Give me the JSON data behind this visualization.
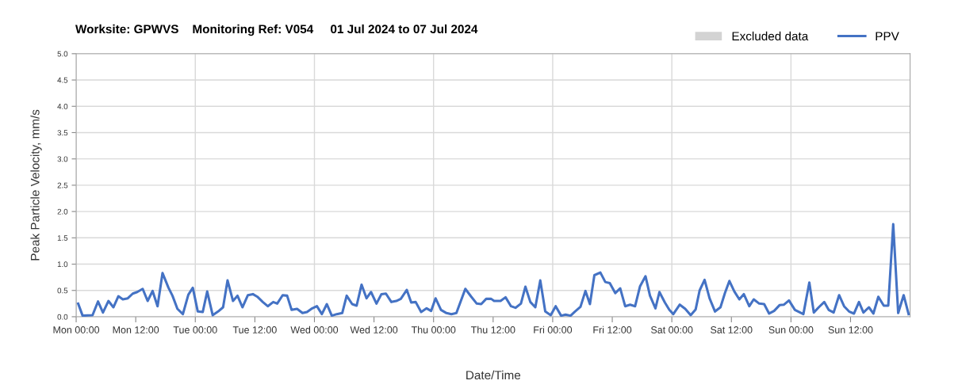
{
  "chart_data": {
    "type": "line",
    "title": "Worksite: GPWVS    Monitoring Ref: V054     01 Jul 2024 to 07 Jul 2024",
    "xlabel": "Date/Time",
    "ylabel": "Peak Particle Velocity, mm/s",
    "xlim": [
      "2024-07-01T00:00",
      "2024-07-08T00:00"
    ],
    "xticks": [
      {
        "value": "2024-07-01T00:00",
        "label": "Mon 00:00"
      },
      {
        "value": "2024-07-01T12:00",
        "label": "Mon 12:00"
      },
      {
        "value": "2024-07-02T00:00",
        "label": "Tue 00:00"
      },
      {
        "value": "2024-07-02T12:00",
        "label": "Tue 12:00"
      },
      {
        "value": "2024-07-03T00:00",
        "label": "Wed 00:00"
      },
      {
        "value": "2024-07-03T12:00",
        "label": "Wed 12:00"
      },
      {
        "value": "2024-07-04T00:00",
        "label": "Thu 00:00"
      },
      {
        "value": "2024-07-04T12:00",
        "label": "Thu 12:00"
      },
      {
        "value": "2024-07-05T00:00",
        "label": "Fri 00:00"
      },
      {
        "value": "2024-07-05T12:00",
        "label": "Fri 12:00"
      },
      {
        "value": "2024-07-06T00:00",
        "label": "Sat 00:00"
      },
      {
        "value": "2024-07-06T12:00",
        "label": "Sat 12:00"
      },
      {
        "value": "2024-07-07T00:00",
        "label": "Sun 00:00"
      },
      {
        "value": "2024-07-07T12:00",
        "label": "Sun 12:00"
      }
    ],
    "ylim": [
      0,
      5
    ],
    "yticks": [
      {
        "value": 0,
        "label": "0.0"
      },
      {
        "value": 0.5,
        "label": "0.5"
      },
      {
        "value": 1,
        "label": "1.0"
      },
      {
        "value": 1.5,
        "label": "1.5"
      },
      {
        "value": 2,
        "label": "2.0"
      },
      {
        "value": 2.5,
        "label": "2.5"
      },
      {
        "value": 3,
        "label": "3.0"
      },
      {
        "value": 3.5,
        "label": "3.5"
      },
      {
        "value": 4,
        "label": "4.0"
      },
      {
        "value": 4.5,
        "label": "4.5"
      },
      {
        "value": 5,
        "label": "5.0"
      }
    ],
    "grid": true,
    "legend": "top right",
    "series": [
      {
        "name": "Excluded data",
        "type": "area",
        "color": "#d3d3d3"
      },
      {
        "name": "PPV",
        "color": "#4472c4",
        "x": [
          "2024-07-01T00:24",
          "2024-07-01T01:18",
          "2024-07-01T03:18",
          "2024-07-01T04:24",
          "2024-07-01T05:24",
          "2024-07-01T06:30",
          "2024-07-01T07:30",
          "2024-07-01T08:30",
          "2024-07-01T09:24",
          "2024-07-01T10:24",
          "2024-07-01T11:24",
          "2024-07-01T12:18",
          "2024-07-01T13:24",
          "2024-07-01T14:24",
          "2024-07-01T15:24",
          "2024-07-01T16:24",
          "2024-07-01T17:24",
          "2024-07-01T18:36",
          "2024-07-01T19:24",
          "2024-07-01T20:24",
          "2024-07-01T21:30",
          "2024-07-01T22:36",
          "2024-07-01T23:30",
          "2024-07-02T00:30",
          "2024-07-02T01:30",
          "2024-07-02T02:24",
          "2024-07-02T03:30",
          "2024-07-02T04:36",
          "2024-07-02T05:36",
          "2024-07-02T06:30",
          "2024-07-02T07:36",
          "2024-07-02T08:30",
          "2024-07-02T09:30",
          "2024-07-02T10:36",
          "2024-07-02T11:36",
          "2024-07-02T12:30",
          "2024-07-02T13:36",
          "2024-07-02T14:36",
          "2024-07-02T15:42",
          "2024-07-02T16:30",
          "2024-07-02T17:36",
          "2024-07-02T18:30",
          "2024-07-02T19:24",
          "2024-07-02T20:30",
          "2024-07-02T21:36",
          "2024-07-02T22:30",
          "2024-07-02T23:24",
          "2024-07-03T00:30",
          "2024-07-03T01:30",
          "2024-07-03T02:30",
          "2024-07-03T03:30",
          "2024-07-03T04:30",
          "2024-07-03T05:36",
          "2024-07-03T06:30",
          "2024-07-03T07:36",
          "2024-07-03T08:30",
          "2024-07-03T09:30",
          "2024-07-03T10:30",
          "2024-07-03T11:24",
          "2024-07-03T12:30",
          "2024-07-03T13:30",
          "2024-07-03T14:24",
          "2024-07-03T15:30",
          "2024-07-03T16:30",
          "2024-07-03T17:24",
          "2024-07-03T18:36",
          "2024-07-03T19:30",
          "2024-07-03T20:24",
          "2024-07-03T21:30",
          "2024-07-03T22:36",
          "2024-07-03T23:30",
          "2024-07-04T00:24",
          "2024-07-04T01:30",
          "2024-07-04T02:36",
          "2024-07-04T03:36",
          "2024-07-04T04:36",
          "2024-07-04T06:24",
          "2024-07-04T07:36",
          "2024-07-04T08:42",
          "2024-07-04T09:36",
          "2024-07-04T10:36",
          "2024-07-04T11:36",
          "2024-07-04T12:12",
          "2024-07-04T13:30",
          "2024-07-04T14:30",
          "2024-07-04T15:36",
          "2024-07-04T16:30",
          "2024-07-04T17:36",
          "2024-07-04T18:30",
          "2024-07-04T19:30",
          "2024-07-04T20:30",
          "2024-07-04T21:30",
          "2024-07-04T22:30",
          "2024-07-04T23:36",
          "2024-07-05T00:36",
          "2024-07-05T01:42",
          "2024-07-05T02:36",
          "2024-07-05T03:36",
          "2024-07-05T04:30",
          "2024-07-05T05:36",
          "2024-07-05T06:36",
          "2024-07-05T07:30",
          "2024-07-05T08:24",
          "2024-07-05T09:36",
          "2024-07-05T10:36",
          "2024-07-05T11:30",
          "2024-07-05T12:36",
          "2024-07-05T13:36",
          "2024-07-05T14:36",
          "2024-07-05T15:36",
          "2024-07-05T16:36",
          "2024-07-05T17:36",
          "2024-07-05T18:42",
          "2024-07-05T19:36",
          "2024-07-05T20:42",
          "2024-07-05T21:30",
          "2024-07-05T22:36",
          "2024-07-05T23:30",
          "2024-07-06T00:18",
          "2024-07-06T01:36",
          "2024-07-06T02:42",
          "2024-07-06T03:48",
          "2024-07-06T04:48",
          "2024-07-06T05:36",
          "2024-07-06T06:36",
          "2024-07-06T07:36",
          "2024-07-06T08:42",
          "2024-07-06T09:48",
          "2024-07-06T10:42",
          "2024-07-06T11:36",
          "2024-07-06T12:36",
          "2024-07-06T13:36",
          "2024-07-06T14:30",
          "2024-07-06T15:36",
          "2024-07-06T16:30",
          "2024-07-06T17:36",
          "2024-07-06T18:36",
          "2024-07-06T19:36",
          "2024-07-06T20:36",
          "2024-07-06T21:42",
          "2024-07-06T22:36",
          "2024-07-06T23:36",
          "2024-07-07T00:48",
          "2024-07-07T02:30",
          "2024-07-07T03:42",
          "2024-07-07T04:36",
          "2024-07-07T05:36",
          "2024-07-07T06:42",
          "2024-07-07T07:36",
          "2024-07-07T08:36",
          "2024-07-07T09:42",
          "2024-07-07T10:42",
          "2024-07-07T11:42",
          "2024-07-07T12:42",
          "2024-07-07T13:42",
          "2024-07-07T14:36",
          "2024-07-07T15:42",
          "2024-07-07T16:36",
          "2024-07-07T17:36",
          "2024-07-07T18:42",
          "2024-07-07T19:36",
          "2024-07-07T20:36",
          "2024-07-07T21:36",
          "2024-07-07T22:42",
          "2024-07-07T23:42"
        ],
        "values": [
          0.25,
          0.02,
          0.03,
          0.29,
          0.08,
          0.3,
          0.18,
          0.39,
          0.33,
          0.35,
          0.44,
          0.47,
          0.53,
          0.3,
          0.49,
          0.2,
          0.83,
          0.55,
          0.4,
          0.15,
          0.05,
          0.42,
          0.55,
          0.1,
          0.09,
          0.48,
          0.03,
          0.1,
          0.18,
          0.69,
          0.3,
          0.4,
          0.18,
          0.41,
          0.43,
          0.38,
          0.28,
          0.2,
          0.28,
          0.25,
          0.41,
          0.4,
          0.13,
          0.15,
          0.07,
          0.09,
          0.15,
          0.2,
          0.05,
          0.24,
          0.02,
          0.05,
          0.07,
          0.4,
          0.24,
          0.21,
          0.61,
          0.35,
          0.47,
          0.25,
          0.43,
          0.44,
          0.28,
          0.3,
          0.34,
          0.51,
          0.27,
          0.28,
          0.09,
          0.16,
          0.11,
          0.35,
          0.13,
          0.07,
          0.05,
          0.07,
          0.53,
          0.38,
          0.25,
          0.24,
          0.34,
          0.34,
          0.3,
          0.3,
          0.37,
          0.2,
          0.17,
          0.25,
          0.57,
          0.28,
          0.18,
          0.69,
          0.1,
          0.03,
          0.2,
          0.02,
          0.04,
          0.02,
          0.1,
          0.19,
          0.49,
          0.24,
          0.79,
          0.84,
          0.66,
          0.64,
          0.45,
          0.54,
          0.2,
          0.23,
          0.2,
          0.58,
          0.77,
          0.4,
          0.16,
          0.47,
          0.27,
          0.13,
          0.05,
          0.23,
          0.15,
          0.03,
          0.14,
          0.5,
          0.7,
          0.35,
          0.1,
          0.18,
          0.45,
          0.68,
          0.48,
          0.33,
          0.43,
          0.2,
          0.33,
          0.25,
          0.24,
          0.06,
          0.11,
          0.22,
          0.23,
          0.31,
          0.13,
          0.05,
          0.65,
          0.08,
          0.18,
          0.28,
          0.13,
          0.08,
          0.41,
          0.2,
          0.1,
          0.06,
          0.28,
          0.08,
          0.18,
          0.06,
          0.38,
          0.21,
          0.21,
          1.76,
          0.07,
          0.41,
          0.05
        ]
      }
    ]
  }
}
